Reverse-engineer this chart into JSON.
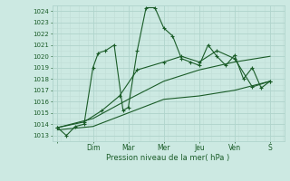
{
  "xlabel": "Pression niveau de la mer( hPa )",
  "background_color": "#cce9e2",
  "grid_color_major": "#b0d4cc",
  "grid_color_minor": "#c0ddd6",
  "line_color": "#1a5c28",
  "ylim": [
    1012.5,
    1024.5
  ],
  "yticks": [
    1013,
    1014,
    1015,
    1016,
    1017,
    1018,
    1019,
    1020,
    1021,
    1022,
    1023,
    1024
  ],
  "day_labels": [
    "",
    "Dim",
    "Mar",
    "Mer",
    "Jeu",
    "Ven",
    "S"
  ],
  "day_positions": [
    0,
    2,
    4,
    6,
    8,
    10,
    12
  ],
  "xlim": [
    -0.3,
    12.8
  ],
  "series1_x": [
    0,
    0.5,
    1.0,
    1.5,
    2.0,
    2.3,
    2.7,
    3.2,
    3.7,
    4.0,
    4.5,
    5.0,
    5.5,
    6.0,
    6.5,
    7.0,
    7.5,
    8.0,
    8.5,
    9.0,
    9.5,
    10.0,
    10.5,
    11.0,
    11.5,
    12.0
  ],
  "series1_y": [
    1013.7,
    1013.0,
    1013.8,
    1014.0,
    1019.0,
    1020.3,
    1020.5,
    1021.0,
    1015.2,
    1015.5,
    1020.5,
    1024.3,
    1024.3,
    1022.5,
    1021.8,
    1019.8,
    1019.5,
    1019.2,
    1021.0,
    1020.0,
    1019.2,
    1020.1,
    1018.0,
    1019.0,
    1017.2,
    1017.8
  ],
  "series2_x": [
    0,
    1.5,
    2.5,
    3.5,
    4.5,
    6.0,
    7.0,
    8.0,
    9.0,
    10.0,
    11.0,
    12.0
  ],
  "series2_y": [
    1013.7,
    1014.2,
    1015.2,
    1016.5,
    1018.8,
    1019.5,
    1020.0,
    1019.5,
    1020.5,
    1019.8,
    1017.3,
    1017.8
  ],
  "series3_x": [
    0,
    2,
    4,
    6,
    8,
    10,
    12
  ],
  "series3_y": [
    1013.5,
    1013.8,
    1015.0,
    1016.2,
    1016.5,
    1017.0,
    1017.8
  ],
  "series4_x": [
    0,
    2,
    4,
    6,
    8,
    10,
    12
  ],
  "series4_y": [
    1013.7,
    1014.5,
    1016.2,
    1017.8,
    1018.8,
    1019.5,
    1020.0
  ]
}
